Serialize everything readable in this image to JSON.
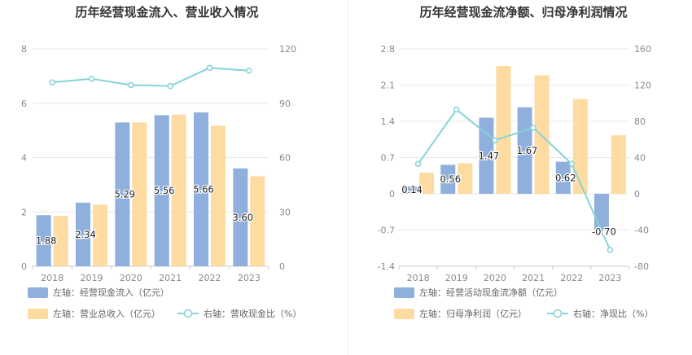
{
  "colors": {
    "blue_bar": "#8fafdc",
    "orange_bar": "#fedba0",
    "ratio_line": "#86d3d8",
    "axis_text": "#8a8a8a",
    "grid": "#e8e8e8",
    "title": "#333333",
    "legend_text": "#666666"
  },
  "chart_data": [
    {
      "type": "bar",
      "title": "历年经营现金流入、营业收入情况",
      "categories": [
        "2018",
        "2019",
        "2020",
        "2021",
        "2022",
        "2023"
      ],
      "left_axis": {
        "min": 0,
        "max": 8,
        "ticks": [
          "0",
          "2",
          "4",
          "6",
          "8"
        ]
      },
      "right_axis": {
        "min": 0,
        "max": 120,
        "ticks": [
          "0",
          "30",
          "60",
          "90",
          "120"
        ]
      },
      "grid": true,
      "legend_position": "bottom-left",
      "series": [
        {
          "name": "左轴：经营现金流入（亿元）",
          "kind": "bar",
          "axis": "left",
          "values": [
            1.88,
            2.34,
            5.29,
            5.56,
            5.66,
            3.6
          ],
          "labels": [
            "1.88",
            "2.34",
            "5.29",
            "5.56",
            "5.66",
            "3.60"
          ]
        },
        {
          "name": "左轴：营业总收入（亿元）",
          "kind": "bar",
          "axis": "left",
          "values": [
            1.85,
            2.27,
            5.29,
            5.58,
            5.17,
            3.31
          ]
        },
        {
          "name": "右轴：营收现金比（%）",
          "kind": "line",
          "axis": "right",
          "values": [
            101.5,
            103.5,
            100.0,
            99.5,
            109.5,
            108.0
          ]
        }
      ]
    },
    {
      "type": "bar",
      "title": "历年经营现金流净额、归母净利润情况",
      "categories": [
        "2018",
        "2019",
        "2020",
        "2021",
        "2022",
        "2023"
      ],
      "left_axis": {
        "min": -1.4,
        "max": 2.8,
        "ticks": [
          "-1.4",
          "-0.7",
          "0",
          "0.7",
          "1.4",
          "2.1",
          "2.8"
        ]
      },
      "right_axis": {
        "min": -80,
        "max": 160,
        "ticks": [
          "-80",
          "-40",
          "0",
          "40",
          "80",
          "120",
          "160"
        ]
      },
      "grid": true,
      "legend_position": "bottom-left",
      "series": [
        {
          "name": "左轴：经营活动现金流净额（亿元）",
          "kind": "bar",
          "axis": "left",
          "values": [
            0.14,
            0.56,
            1.47,
            1.67,
            0.62,
            -0.7
          ],
          "labels": [
            "0.14",
            "0.56",
            "1.47",
            "1.67",
            "0.62",
            "-0.70"
          ]
        },
        {
          "name": "左轴：归母净利润（亿元）",
          "kind": "bar",
          "axis": "left",
          "values": [
            0.41,
            0.59,
            2.47,
            2.29,
            1.83,
            1.13
          ]
        },
        {
          "name": "右轴：净现比（%）",
          "kind": "line",
          "axis": "right",
          "values": [
            33,
            93,
            59,
            73,
            33,
            -62
          ]
        }
      ]
    }
  ]
}
